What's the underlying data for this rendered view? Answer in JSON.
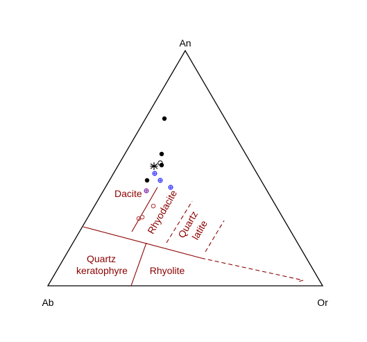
{
  "diagram": {
    "colors": {
      "frame": "#000000",
      "field": "#8B0000",
      "samples_filled": "#000000",
      "samples_cross": "#1a1aff",
      "samples_open": "#b03030"
    },
    "vertices": {
      "top": "An",
      "left": "Ab",
      "right": "Or"
    },
    "fields": {
      "dacite": "Dacite",
      "rhyodacite": "Rhyodacite",
      "quartz_latite_1": "Quartz",
      "quartz_latite_2": "latite",
      "quartz_keratophyre_1": "Quartz",
      "quartz_keratophyre_2": "keratophyre",
      "rhyolite": "Rhyolite"
    },
    "symbols": {
      "filled_circle": "filled-circle",
      "circle_plus": "circle-plus",
      "open_circle": "open-circle",
      "asterisk": "asterisk"
    }
  }
}
